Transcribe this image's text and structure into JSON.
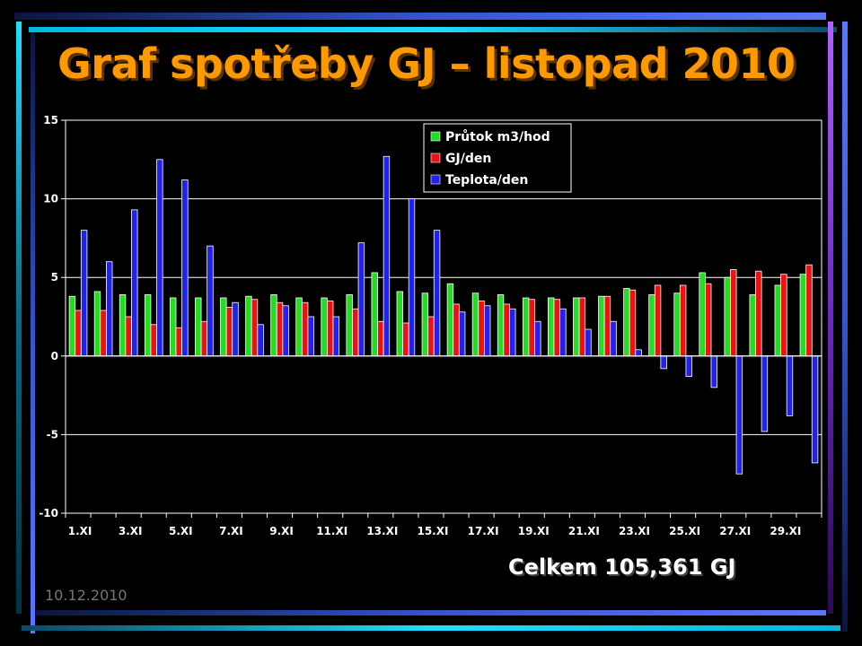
{
  "slide": {
    "title": "Graf spotřeby GJ – listopad 2010",
    "total": "Celkem 105,361 GJ",
    "date": "10.12.2010"
  },
  "chart_data": {
    "type": "bar",
    "categories": [
      "1.XI",
      "2.XI",
      "3.XI",
      "4.XI",
      "5.XI",
      "6.XI",
      "7.XI",
      "8.XI",
      "9.XI",
      "10.XI",
      "11.XI",
      "12.XI",
      "13.XI",
      "14.XI",
      "15.XI",
      "16.XI",
      "17.XI",
      "18.XI",
      "19.XI",
      "20.XI",
      "21.XI",
      "22.XI",
      "23.XI",
      "24.XI",
      "25.XI",
      "26.XI",
      "27.XI",
      "28.XI",
      "29.XI",
      "30.XI"
    ],
    "tick_labels": [
      "1.XI",
      "3.XI",
      "5.XI",
      "7.XI",
      "9.XI",
      "11.XI",
      "13.XI",
      "15.XI",
      "17.XI",
      "19.XI",
      "21.XI",
      "23.XI",
      "25.XI",
      "27.XI",
      "29.XI"
    ],
    "series": [
      {
        "name": "Průtok m3/hod",
        "color": "#22dd22",
        "values": [
          3.8,
          4.1,
          3.9,
          3.9,
          3.7,
          3.7,
          3.7,
          3.8,
          3.9,
          3.7,
          3.7,
          3.9,
          5.3,
          4.1,
          4.0,
          4.6,
          4.0,
          3.9,
          3.7,
          3.7,
          3.7,
          3.8,
          4.3,
          3.9,
          4.0,
          5.3,
          5.0,
          3.9,
          4.5,
          5.2
        ]
      },
      {
        "name": "GJ/den",
        "color": "#ee1111",
        "values": [
          2.9,
          2.9,
          2.5,
          2.0,
          1.8,
          2.2,
          3.1,
          3.6,
          3.4,
          3.4,
          3.5,
          3.0,
          2.2,
          2.1,
          2.5,
          3.3,
          3.5,
          3.3,
          3.6,
          3.6,
          3.7,
          3.8,
          4.2,
          4.5,
          4.5,
          4.6,
          5.5,
          5.4,
          5.2,
          5.8
        ]
      },
      {
        "name": "Teplota/den",
        "color": "#2222ee",
        "values": [
          8.0,
          6.0,
          9.3,
          12.5,
          11.2,
          7.0,
          3.4,
          2.0,
          3.2,
          2.5,
          2.5,
          7.2,
          12.7,
          10.0,
          8.0,
          2.8,
          3.2,
          3.0,
          2.2,
          3.0,
          1.7,
          2.2,
          0.4,
          -0.8,
          -1.3,
          -2.0,
          -7.5,
          -4.8,
          -3.8,
          -6.8
        ]
      }
    ],
    "ylim": [
      -10,
      15
    ],
    "yticks": [
      -10,
      -5,
      0,
      5,
      10,
      15
    ],
    "grid": true,
    "legend_position": "top-center",
    "colors": {
      "background": "#000000",
      "axis": "#ffffff",
      "grid": "#ffffff"
    }
  }
}
